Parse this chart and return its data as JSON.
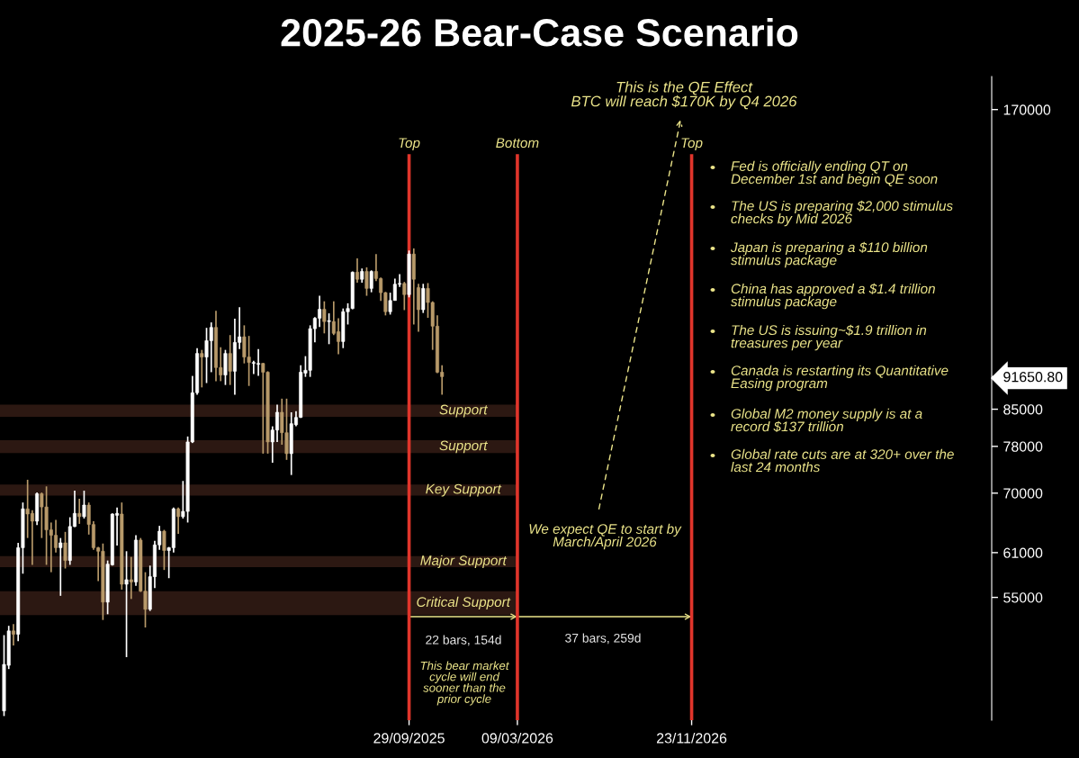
{
  "chart_data": {
    "type": "candlestick",
    "title": "2025-26 Bear-Case Scenario",
    "log": true,
    "colors": [
      "#ffffff",
      "#ffffff",
      "#b89a6a",
      "#ffffff",
      "#ffffff",
      "#b89a6a",
      "#b89a6a",
      "#ffffff",
      "#b89a6a",
      "#b89a6a",
      "#b89a6a",
      "#b89a6a",
      "#ffffff",
      "#b89a6a",
      "#ffffff",
      "#ffffff",
      "#b89a6a",
      "#ffffff",
      "#b89a6a",
      "#b89a6a",
      "#b89a6a",
      "#b89a6a",
      "#ffffff",
      "#ffffff",
      "#ffffff",
      "#b89a6a",
      "#ffffff",
      "#b89a6a",
      "#ffffff",
      "#b89a6a",
      "#b89a6a",
      "#ffffff",
      "#ffffff",
      "#ffffff",
      "#b89a6a",
      "#ffffff",
      "#ffffff",
      "#b89a6a",
      "#ffffff",
      "#ffffff",
      "#ffffff",
      "#ffffff",
      "#b89a6a",
      "#ffffff",
      "#ffffff",
      "#b89a6a",
      "#b89a6a",
      "#ffffff",
      "#b89a6a",
      "#ffffff",
      "#ffffff",
      "#b89a6a",
      "#b89a6a",
      "#ffffff",
      "#ffffff",
      "#b89a6a",
      "#b89a6a",
      "#ffffff",
      "#ffffff",
      "#b89a6a",
      "#b89a6a",
      "#ffffff",
      "#ffffff",
      "#ffffff",
      "#ffffff",
      "#ffffff",
      "#ffffff",
      "#ffffff",
      "#b89a6a",
      "#ffffff",
      "#b89a6a",
      "#b89a6a",
      "#ffffff",
      "#ffffff",
      "#ffffff",
      "#b89a6a",
      "#ffffff",
      "#b89a6a",
      "#ffffff",
      "#b89a6a",
      "#b89a6a",
      "#b89a6a",
      "#ffffff",
      "#ffffff",
      "#ffffff",
      "#b89a6a",
      "#ffffff",
      "#b89a6a",
      "#b89a6a",
      "#ffffff",
      "#b89a6a",
      "#b89a6a",
      "#b89a6a",
      "#b89a6a"
    ],
    "x": [
      "2024-02-05",
      "2024-02-12",
      "2024-02-19",
      "2024-02-26",
      "2024-03-04",
      "2024-03-11",
      "2024-03-18",
      "2024-03-25",
      "2024-04-01",
      "2024-04-08",
      "2024-04-15",
      "2024-04-22",
      "2024-04-29",
      "2024-05-06",
      "2024-05-13",
      "2024-05-20",
      "2024-05-27",
      "2024-06-03",
      "2024-06-10",
      "2024-06-17",
      "2024-06-24",
      "2024-07-01",
      "2024-07-08",
      "2024-07-15",
      "2024-07-22",
      "2024-07-29",
      "2024-08-05",
      "2024-08-12",
      "2024-08-19",
      "2024-08-26",
      "2024-09-02",
      "2024-09-09",
      "2024-09-16",
      "2024-09-23",
      "2024-09-30",
      "2024-10-07",
      "2024-10-14",
      "2024-10-21",
      "2024-10-28",
      "2024-11-04",
      "2024-11-11",
      "2024-11-18",
      "2024-11-25",
      "2024-12-02",
      "2024-12-09",
      "2024-12-16",
      "2024-12-23",
      "2024-12-30",
      "2025-01-06",
      "2025-01-13",
      "2025-01-20",
      "2025-01-27",
      "2025-02-03",
      "2025-02-10",
      "2025-02-17",
      "2025-02-24",
      "2025-03-03",
      "2025-03-10",
      "2025-03-17",
      "2025-03-24",
      "2025-03-31",
      "2025-04-07",
      "2025-04-14",
      "2025-04-21",
      "2025-04-28",
      "2025-05-05",
      "2025-05-12",
      "2025-05-19",
      "2025-05-26",
      "2025-06-02",
      "2025-06-09",
      "2025-06-16",
      "2025-06-23",
      "2025-06-30",
      "2025-07-07",
      "2025-07-14",
      "2025-07-21",
      "2025-07-28",
      "2025-08-04",
      "2025-08-11",
      "2025-08-18",
      "2025-08-25",
      "2025-09-01",
      "2025-09-08",
      "2025-09-15",
      "2025-09-22",
      "2025-09-29",
      "2025-10-06",
      "2025-10-13",
      "2025-10-20",
      "2025-10-27",
      "2025-11-03",
      "2025-11-10",
      "2025-11-17"
    ],
    "ohlc": [
      [
        42300,
        50400,
        41800,
        47100
      ],
      [
        47000,
        51500,
        46600,
        50900
      ],
      [
        50900,
        51700,
        49200,
        50500
      ],
      [
        50500,
        62400,
        49700,
        61700
      ],
      [
        61700,
        68500,
        58100,
        67500
      ],
      [
        67500,
        72200,
        63100,
        66700
      ],
      [
        66800,
        67300,
        59300,
        65600
      ],
      [
        65600,
        70100,
        65000,
        69900
      ],
      [
        69900,
        70100,
        63100,
        67800
      ],
      [
        67800,
        71100,
        59300,
        64300
      ],
      [
        64300,
        65400,
        58300,
        63500
      ],
      [
        63500,
        65800,
        61000,
        61700
      ],
      [
        61700,
        63100,
        55200,
        62400
      ],
      [
        62400,
        64000,
        58800,
        59900
      ],
      [
        59900,
        66200,
        59300,
        64800
      ],
      [
        64800,
        70400,
        64700,
        66800
      ],
      [
        66800,
        69100,
        65200,
        66300
      ],
      [
        66300,
        70400,
        66000,
        68100
      ],
      [
        68100,
        68500,
        63600,
        65100
      ],
      [
        65100,
        65600,
        61400,
        61700
      ],
      [
        61700,
        61800,
        57100,
        61200
      ],
      [
        61200,
        62300,
        52200,
        54400
      ],
      [
        54400,
        59900,
        52900,
        59400
      ],
      [
        59300,
        66800,
        59200,
        66700
      ],
      [
        66500,
        67700,
        62000,
        66800
      ],
      [
        66700,
        68500,
        56000,
        56700
      ],
      [
        56700,
        61200,
        47900,
        57300
      ],
      [
        57300,
        60400,
        54800,
        57000
      ],
      [
        57000,
        63500,
        56500,
        62800
      ],
      [
        62800,
        63100,
        55700,
        55800
      ],
      [
        55800,
        58300,
        51300,
        53500
      ],
      [
        53500,
        59200,
        53300,
        57700
      ],
      [
        57700,
        62700,
        56200,
        62100
      ],
      [
        62100,
        64900,
        61400,
        64100
      ],
      [
        64100,
        64300,
        58600,
        61300
      ],
      [
        61300,
        61800,
        57500,
        61700
      ],
      [
        61700,
        67700,
        61000,
        67500
      ],
      [
        67500,
        67700,
        63700,
        66300
      ],
      [
        66300,
        72000,
        66000,
        67100
      ],
      [
        67100,
        79800,
        65400,
        78800
      ],
      [
        78800,
        91800,
        78600,
        88300
      ],
      [
        88300,
        97900,
        87900,
        96700
      ],
      [
        96700,
        97500,
        89400,
        95900
      ],
      [
        95900,
        102600,
        90300,
        99600
      ],
      [
        99600,
        103900,
        92600,
        102700
      ],
      [
        102700,
        106700,
        90700,
        93600
      ],
      [
        93600,
        98100,
        90700,
        92000
      ],
      [
        92000,
        97500,
        89900,
        96700
      ],
      [
        96700,
        100900,
        89900,
        92800
      ],
      [
        92800,
        104800,
        87900,
        99200
      ],
      [
        99200,
        107600,
        97700,
        100500
      ],
      [
        100500,
        103200,
        94500,
        95900
      ],
      [
        95900,
        100700,
        89700,
        94700
      ],
      [
        94500,
        95100,
        92200,
        94700
      ],
      [
        94300,
        97700,
        91800,
        94500
      ],
      [
        94500,
        94600,
        76700,
        92600
      ],
      [
        92600,
        92800,
        76700,
        78800
      ],
      [
        78800,
        81700,
        75100,
        81000
      ],
      [
        81000,
        85900,
        78800,
        84400
      ],
      [
        84400,
        87100,
        78300,
        80500
      ],
      [
        80500,
        87100,
        75600,
        76700
      ],
      [
        76700,
        84400,
        73000,
        82200
      ],
      [
        82000,
        84600,
        81700,
        83400
      ],
      [
        83400,
        94100,
        83300,
        92600
      ],
      [
        92400,
        96100,
        91600,
        93000
      ],
      [
        93000,
        103200,
        91600,
        102400
      ],
      [
        102400,
        105200,
        99200,
        104900
      ],
      [
        104900,
        110500,
        102800,
        107100
      ],
      [
        107100,
        109100,
        101300,
        104100
      ],
      [
        104100,
        106100,
        98800,
        104300
      ],
      [
        104100,
        109100,
        100900,
        101300
      ],
      [
        101700,
        104900,
        96500,
        99400
      ],
      [
        99400,
        107300,
        97900,
        106500
      ],
      [
        106500,
        108600,
        103400,
        107300
      ],
      [
        107300,
        116900,
        107100,
        116700
      ],
      [
        116700,
        120500,
        113900,
        114800
      ],
      [
        114800,
        117700,
        113900,
        116900
      ],
      [
        116900,
        118000,
        110500,
        112400
      ],
      [
        112400,
        117200,
        111400,
        116900
      ],
      [
        116900,
        121700,
        114300,
        115000
      ],
      [
        115000,
        115300,
        109200,
        111300
      ],
      [
        111300,
        111500,
        105600,
        106500
      ],
      [
        106500,
        111300,
        105800,
        109300
      ],
      [
        109300,
        115000,
        109300,
        113500
      ],
      [
        113500,
        116200,
        112800,
        113700
      ],
      [
        113700,
        114100,
        106900,
        110800
      ],
      [
        110800,
        122700,
        110100,
        121700
      ],
      [
        121700,
        123300,
        103400,
        114800
      ],
      [
        112600,
        113600,
        101700,
        107000
      ],
      [
        107000,
        113600,
        106200,
        112400
      ],
      [
        112400,
        113800,
        105000,
        108800
      ],
      [
        108800,
        109100,
        97500,
        103000
      ],
      [
        103000,
        105600,
        92400,
        92600
      ],
      [
        92600,
        94100,
        87900,
        91650.8
      ]
    ],
    "xlim": [
      "2024-01-30",
      "2028-02-12"
    ],
    "xticks": [
      {
        "value": "2025-09-29",
        "label": "29/09/2025"
      },
      {
        "value": "2026-03-09",
        "label": "09/03/2026"
      },
      {
        "value": "2026-11-23",
        "label": "23/11/2026"
      }
    ],
    "ylim": [
      41400,
      183500
    ],
    "yticks": [
      170000,
      {
        "value": 91650.8,
        "label": "91650.80"
      },
      85000,
      78000,
      70000,
      61000,
      55000
    ],
    "ref_lines": [
      {
        "axis": "x",
        "value": "2025-09-29",
        "label": "Top",
        "color": "#e0352b"
      },
      {
        "axis": "x",
        "value": "2026-03-09",
        "label": "Bottom",
        "color": "#e0352b"
      },
      {
        "axis": "x",
        "value": "2026-11-23",
        "label": "Top",
        "color": "#e0352b"
      }
    ],
    "bands": [
      {
        "axis": "y",
        "from": 83500,
        "to": 85900,
        "label": "Support",
        "color": "#2c1812"
      },
      {
        "axis": "y",
        "from": 76800,
        "to": 79100,
        "label": "Support",
        "color": "#2c1812"
      },
      {
        "axis": "y",
        "from": 69600,
        "to": 71400,
        "label": "Key Support",
        "color": "#2c1812"
      },
      {
        "axis": "y",
        "from": 59000,
        "to": 60500,
        "label": "Major Support",
        "color": "#2c1812"
      },
      {
        "axis": "y",
        "from": 52800,
        "to": 55800,
        "label": "Critical Support",
        "color": "#2c1812"
      }
    ],
    "annotations": [
      "This is the QE Effect\nBTC will reach $170K by Q4 2026",
      "We expect QE to start by\nMarch/April 2026",
      "22 bars, 154d",
      "37 bars, 259d",
      "This bear market\ncycle will end\nsooner than the\nprior cycle",
      "Fed is officially ending QT on\nDecember 1st and begin QE soon",
      "The US is preparing $2,000 stimulus\nchecks by Mid 2026",
      "Japan is preparing a $110 billion\nstimulus package",
      "China has approved a $1.4 trillion\nstimulus package",
      "The US is issuing~$1.9 trillion in\ntreasures per year",
      "Canada is restarting its Quantitative\nEasing program",
      "Global M2 money supply is at a\nrecord $137 trillion",
      "Global rate cuts are at 320+ over the\nlast 24 months"
    ],
    "grid": false
  }
}
